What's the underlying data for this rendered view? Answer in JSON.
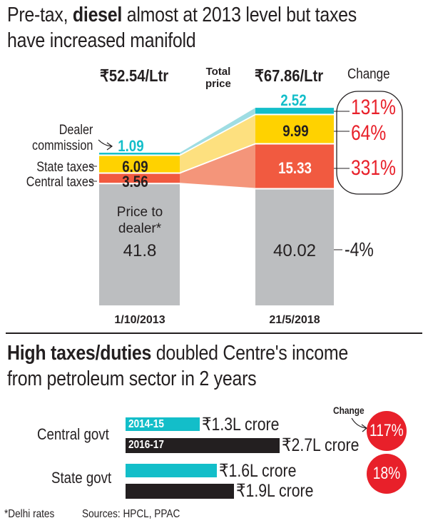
{
  "chart_data": [
    {
      "type": "bar",
      "stacked": true,
      "title_parts": [
        "Pre-tax, ",
        "diesel",
        " almost at 2013 level but taxes",
        "have increased manifold"
      ],
      "categories": [
        "1/10/2013",
        "21/5/2018"
      ],
      "totals": [
        "₹52.54/Ltr",
        "₹67.86/Ltr"
      ],
      "total_label_lines": [
        "Total",
        "price"
      ],
      "series": [
        {
          "name": "Price to dealer*",
          "values": [
            41.8,
            40.02
          ],
          "labels": [
            "41.8",
            "40.02"
          ],
          "change": "-4%",
          "color": "#bcbec0"
        },
        {
          "name": "Central taxes",
          "values": [
            3.56,
            15.33
          ],
          "labels": [
            "3.56",
            "15.33"
          ],
          "change": "331%",
          "color": "#f15a40"
        },
        {
          "name": "State taxes",
          "values": [
            6.09,
            9.99
          ],
          "labels": [
            "6.09",
            "9.99"
          ],
          "change": "64%",
          "color": "#ffd200"
        },
        {
          "name": "Dealer commission",
          "values": [
            1.09,
            2.52
          ],
          "labels": [
            "1.09",
            "2.52"
          ],
          "change": "131%",
          "color": "#13bec9"
        }
      ],
      "dealer_label_lines": [
        "Dealer",
        "commission"
      ],
      "price_label_lines": [
        "Price to",
        "dealer*"
      ],
      "change_label": "Change"
    },
    {
      "type": "bar",
      "orientation": "horizontal",
      "title_bold": "High taxes/duties",
      "title_rest": " doubled Centre's income",
      "title_line2": "from petroleum sector in 2 years",
      "categories": [
        "Central govt",
        "State govt"
      ],
      "series": [
        {
          "name": "2014-15",
          "values": [
            1.3,
            1.6
          ],
          "labels": [
            "₹1.3L crore",
            "₹1.6L crore"
          ],
          "color": "#13bec9"
        },
        {
          "name": "2016-17",
          "values": [
            2.7,
            1.9
          ],
          "labels": [
            "₹2.7L crore",
            "₹1.9L crore"
          ],
          "color": "#231f20"
        }
      ],
      "unit": "₹ lakh crore",
      "change_label": "Change",
      "changes": [
        "117%",
        "18%"
      ]
    }
  ],
  "footer": {
    "note": "*Delhi rates",
    "sources": "Sources: HPCL, PPAC"
  }
}
